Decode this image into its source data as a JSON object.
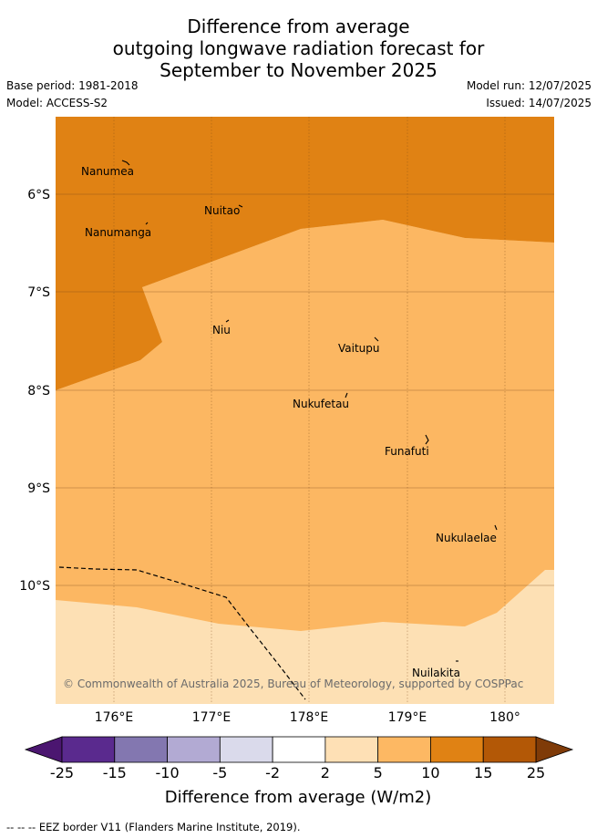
{
  "header": {
    "title_lines": [
      "Difference from average",
      "outgoing longwave radiation forecast for",
      "September to November 2025"
    ],
    "base_period": "Base period: 1981-2018",
    "model": "Model: ACCESS-S2",
    "model_run": "Model run: 12/07/2025",
    "issued": "Issued: 14/07/2025"
  },
  "map": {
    "lat_labels": [
      "6°S",
      "7°S",
      "8°S",
      "9°S",
      "10°S"
    ],
    "lon_labels": [
      "176°E",
      "177°E",
      "178°E",
      "179°E",
      "180°"
    ],
    "islands": [
      {
        "name": "Nanumea",
        "icon": "island-icon"
      },
      {
        "name": "Nuitao",
        "icon": "island-icon"
      },
      {
        "name": "Nanumanga",
        "icon": "island-icon"
      },
      {
        "name": "Niu",
        "icon": "island-icon"
      },
      {
        "name": "Vaitupu",
        "icon": "island-icon"
      },
      {
        "name": "Nukufetau",
        "icon": "island-icon"
      },
      {
        "name": "Funafuti",
        "icon": "island-icon"
      },
      {
        "name": "Nukulaelae",
        "icon": "island-icon"
      },
      {
        "name": "Nuilakita",
        "icon": "island-icon"
      }
    ],
    "copyright": "© Commonwealth of Australia 2025, Bureau of Meteorology, supported by COSPPac"
  },
  "legend": {
    "title": "Difference from average (W/m2)",
    "ticks": [
      "-25",
      "-15",
      "-10",
      "-5",
      "-2",
      "2",
      "5",
      "10",
      "15",
      "25"
    ],
    "colors": [
      "#4b1670",
      "#5a2a8e",
      "#8377b0",
      "#b2aad3",
      "#dadaeb",
      "#ffffff",
      "#fee0b5",
      "#fdb863",
      "#e08214",
      "#b35806",
      "#7f3b08"
    ]
  },
  "footer": {
    "eez_note": "--  --  -- EEZ border V11 (Flanders Marine Institute, 2019)."
  }
}
